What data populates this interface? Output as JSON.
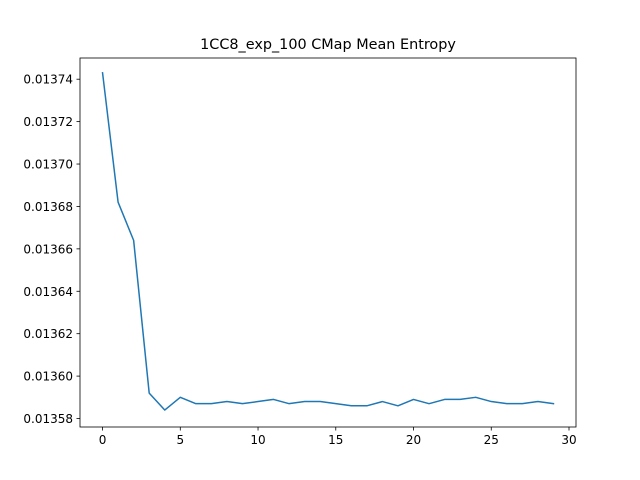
{
  "chart_data": {
    "type": "line",
    "title": "1CC8_exp_100 CMap Mean Entropy",
    "xlabel": "",
    "ylabel": "",
    "xlim": [
      -1.45,
      30.45
    ],
    "ylim": [
      0.013576,
      0.01375
    ],
    "xticks": [
      0,
      5,
      10,
      15,
      20,
      25,
      30
    ],
    "yticks": [
      0.01358,
      0.0136,
      0.01362,
      0.01364,
      0.01366,
      0.01368,
      0.0137,
      0.01372,
      0.01374
    ],
    "ytick_labels": [
      "0.01358",
      "0.01360",
      "0.01362",
      "0.01364",
      "0.01366",
      "0.01368",
      "0.01370",
      "0.01372",
      "0.01374"
    ],
    "grid": false,
    "series": [
      {
        "color": "#1f77b4",
        "x": [
          0,
          1,
          2,
          3,
          4,
          5,
          6,
          7,
          8,
          9,
          10,
          11,
          12,
          13,
          14,
          15,
          16,
          17,
          18,
          19,
          20,
          21,
          22,
          23,
          24,
          25,
          26,
          27,
          28,
          29
        ],
        "y": [
          0.013743,
          0.013682,
          0.013664,
          0.013592,
          0.013584,
          0.01359,
          0.013587,
          0.013587,
          0.013588,
          0.013587,
          0.013588,
          0.013589,
          0.013587,
          0.013588,
          0.013588,
          0.013587,
          0.013586,
          0.013586,
          0.013588,
          0.013586,
          0.013589,
          0.013587,
          0.013589,
          0.013589,
          0.01359,
          0.013588,
          0.013587,
          0.013587,
          0.013588,
          0.013587
        ]
      }
    ]
  }
}
